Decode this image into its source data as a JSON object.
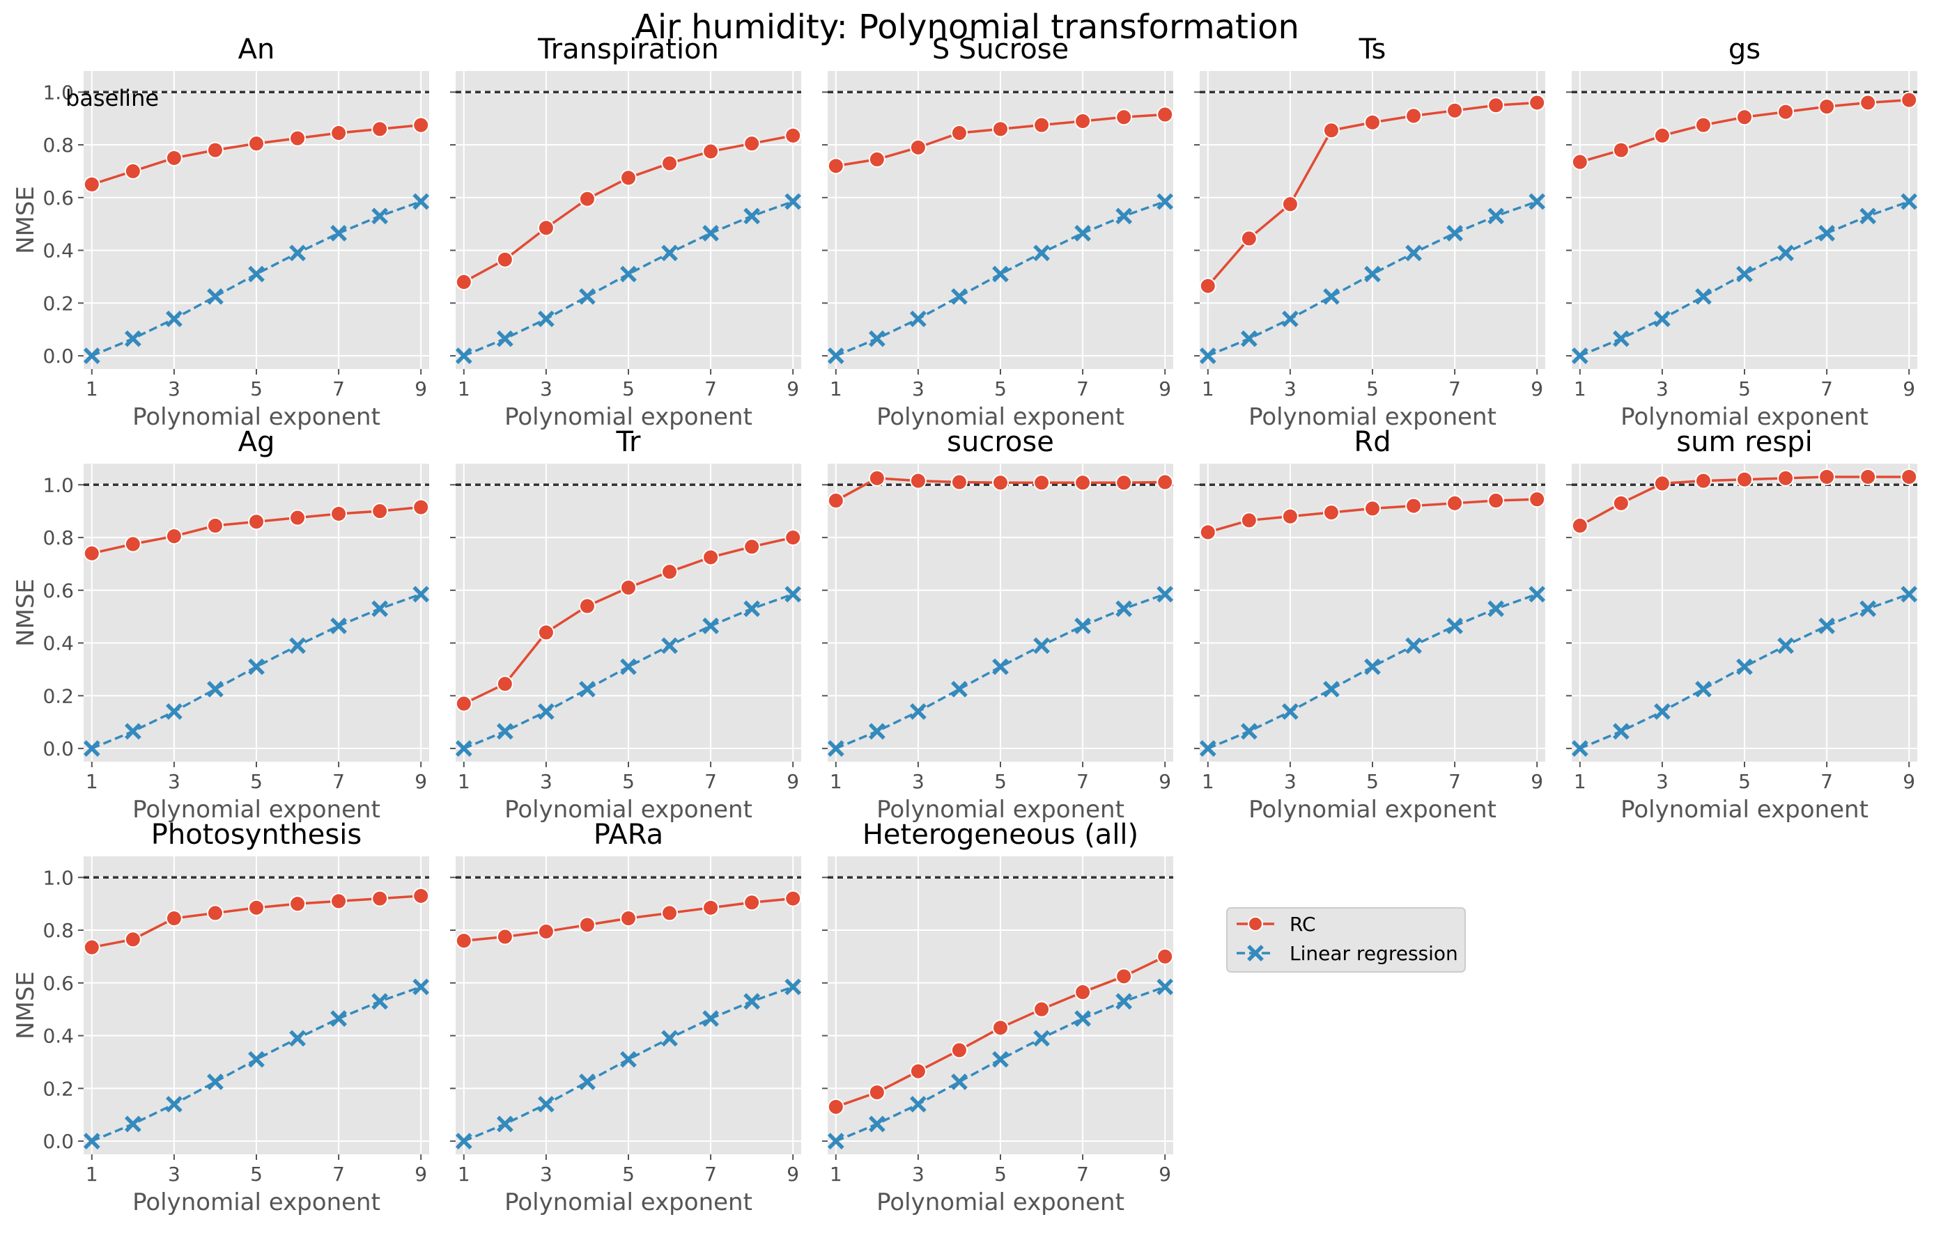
{
  "figure": {
    "title": "Air humidity: Polynomial transformation",
    "baseline_label": "baseline"
  },
  "chart_data": {
    "type": "line",
    "layout": "3x5 grid of small multiples, shared axes",
    "x_label": "Polynomial exponent",
    "y_label": "NMSE",
    "x": [
      1,
      2,
      3,
      4,
      5,
      6,
      7,
      8,
      9
    ],
    "x_ticks": [
      1,
      3,
      5,
      7,
      9
    ],
    "y_ticks": [
      0.0,
      0.2,
      0.4,
      0.6,
      0.8,
      1.0
    ],
    "y_tick_labels": [
      "0.0",
      "0.2",
      "0.4",
      "0.6",
      "0.8",
      "1.0"
    ],
    "ylim": [
      -0.05,
      1.08
    ],
    "xlim": [
      0.8,
      9.2
    ],
    "baseline_value": 1.0,
    "grid": true,
    "background": "#e5e5e5",
    "colors": {
      "rc": "#e24a33",
      "lr": "#348abd",
      "baseline": "#333333"
    },
    "legend": {
      "position": "right of bottom row",
      "entries": [
        {
          "label": "RC",
          "marker": "circle",
          "line": "solid",
          "color": "#e24a33"
        },
        {
          "label": "Linear regression",
          "marker": "x",
          "line": "dashed",
          "color": "#348abd"
        }
      ]
    },
    "linear_regression": [
      0.0,
      0.065,
      0.14,
      0.225,
      0.31,
      0.39,
      0.465,
      0.53,
      0.585
    ],
    "panels": [
      {
        "title": "An",
        "rc": [
          0.65,
          0.7,
          0.75,
          0.78,
          0.805,
          0.825,
          0.845,
          0.86,
          0.875
        ]
      },
      {
        "title": "Transpiration",
        "rc": [
          0.28,
          0.365,
          0.485,
          0.595,
          0.675,
          0.73,
          0.775,
          0.805,
          0.835
        ]
      },
      {
        "title": "S Sucrose",
        "rc": [
          0.72,
          0.745,
          0.79,
          0.845,
          0.86,
          0.875,
          0.89,
          0.905,
          0.915
        ]
      },
      {
        "title": "Ts",
        "rc": [
          0.265,
          0.445,
          0.575,
          0.855,
          0.885,
          0.91,
          0.93,
          0.95,
          0.96
        ]
      },
      {
        "title": "gs",
        "rc": [
          0.735,
          0.78,
          0.835,
          0.875,
          0.905,
          0.925,
          0.945,
          0.96,
          0.97
        ]
      },
      {
        "title": "Ag",
        "rc": [
          0.74,
          0.775,
          0.805,
          0.845,
          0.86,
          0.875,
          0.89,
          0.9,
          0.915
        ]
      },
      {
        "title": "Tr",
        "rc": [
          0.17,
          0.245,
          0.44,
          0.54,
          0.61,
          0.67,
          0.725,
          0.765,
          0.8
        ]
      },
      {
        "title": "sucrose",
        "rc": [
          0.94,
          1.025,
          1.015,
          1.01,
          1.008,
          1.008,
          1.008,
          1.008,
          1.01
        ]
      },
      {
        "title": "Rd",
        "rc": [
          0.82,
          0.865,
          0.88,
          0.895,
          0.91,
          0.92,
          0.93,
          0.94,
          0.945
        ]
      },
      {
        "title": "sum respi",
        "rc": [
          0.845,
          0.93,
          1.005,
          1.015,
          1.02,
          1.025,
          1.03,
          1.03,
          1.03
        ]
      },
      {
        "title": "Photosynthesis",
        "rc": [
          0.735,
          0.765,
          0.845,
          0.865,
          0.885,
          0.9,
          0.91,
          0.92,
          0.93
        ]
      },
      {
        "title": "PARa",
        "rc": [
          0.76,
          0.775,
          0.795,
          0.82,
          0.845,
          0.865,
          0.885,
          0.905,
          0.92
        ]
      },
      {
        "title": "Heterogeneous (all)",
        "rc": [
          0.13,
          0.185,
          0.265,
          0.345,
          0.43,
          0.5,
          0.565,
          0.625,
          0.7
        ]
      }
    ]
  }
}
